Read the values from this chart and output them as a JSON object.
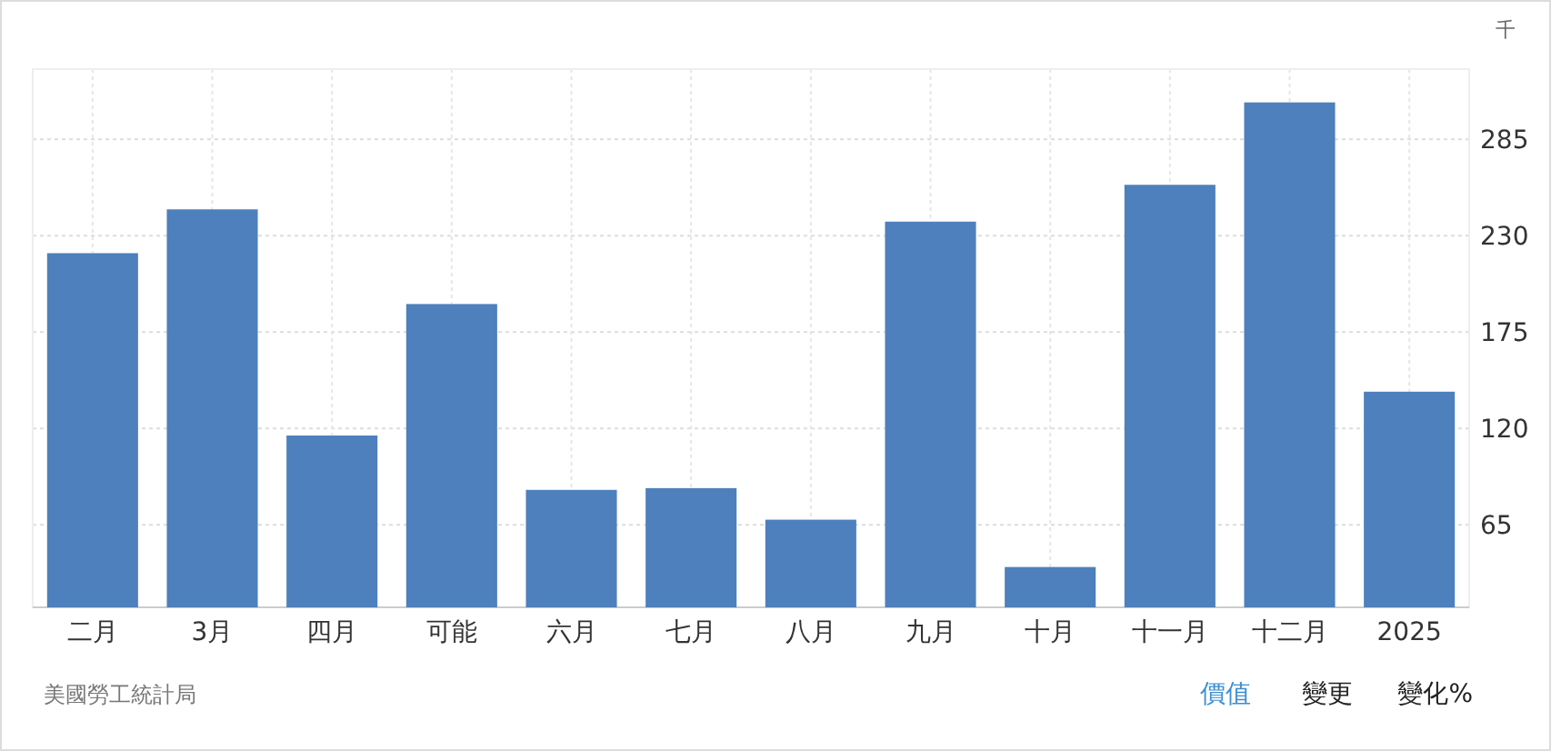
{
  "chart_data": {
    "type": "bar",
    "ylabel": "千",
    "categories": [
      "二月",
      "3月",
      "四月",
      "可能",
      "六月",
      "七月",
      "八月",
      "九月",
      "十月",
      "十一月",
      "十二月",
      "2025"
    ],
    "series": [
      {
        "color": "#4d80bc",
        "values": [
          220,
          245,
          116,
          191,
          85,
          86,
          68,
          238,
          41,
          259,
          306,
          141
        ]
      }
    ],
    "ylim": [
      18,
      325
    ],
    "yticks": [
      65,
      120,
      175,
      230,
      285
    ],
    "grid": true,
    "annotations": [
      "美國勞工統計局",
      "價值",
      "變更",
      "變化%"
    ]
  }
}
